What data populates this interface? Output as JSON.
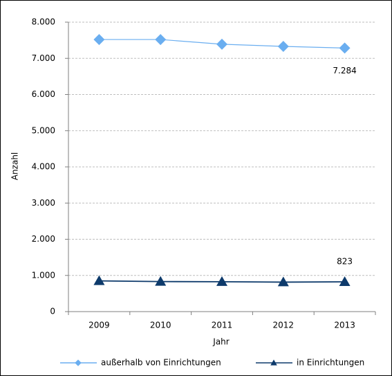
{
  "chart_data": {
    "type": "line",
    "categories": [
      "2009",
      "2010",
      "2011",
      "2012",
      "2013"
    ],
    "x_label": "Jahr",
    "y_label": "Anzahl",
    "series": [
      {
        "name": "außerhalb von Einrichtungen",
        "color": "#6aaef0",
        "marker": "diamond",
        "values": [
          7520,
          7520,
          7390,
          7330,
          7284
        ],
        "value_labels": [
          null,
          null,
          null,
          null,
          "7.284"
        ]
      },
      {
        "name": "in Einrichtungen",
        "color": "#0d3a6b",
        "marker": "triangle",
        "values": [
          850,
          830,
          825,
          815,
          823
        ],
        "value_labels": [
          null,
          null,
          null,
          null,
          "823"
        ]
      }
    ],
    "ylim": [
      0,
      8000
    ],
    "yticks": [
      0,
      {
        "value": 1000,
        "label": "1.000"
      },
      {
        "value": 2000,
        "label": "2.000"
      },
      {
        "value": 3000,
        "label": "3.000"
      },
      {
        "value": 4000,
        "label": "4.000"
      },
      {
        "value": 5000,
        "label": "5.000"
      },
      {
        "value": 6000,
        "label": "6.000"
      },
      {
        "value": 7000,
        "label": "7.000"
      },
      {
        "value": 8000,
        "label": "8.000"
      }
    ],
    "grid": true,
    "legend": "bottom"
  }
}
